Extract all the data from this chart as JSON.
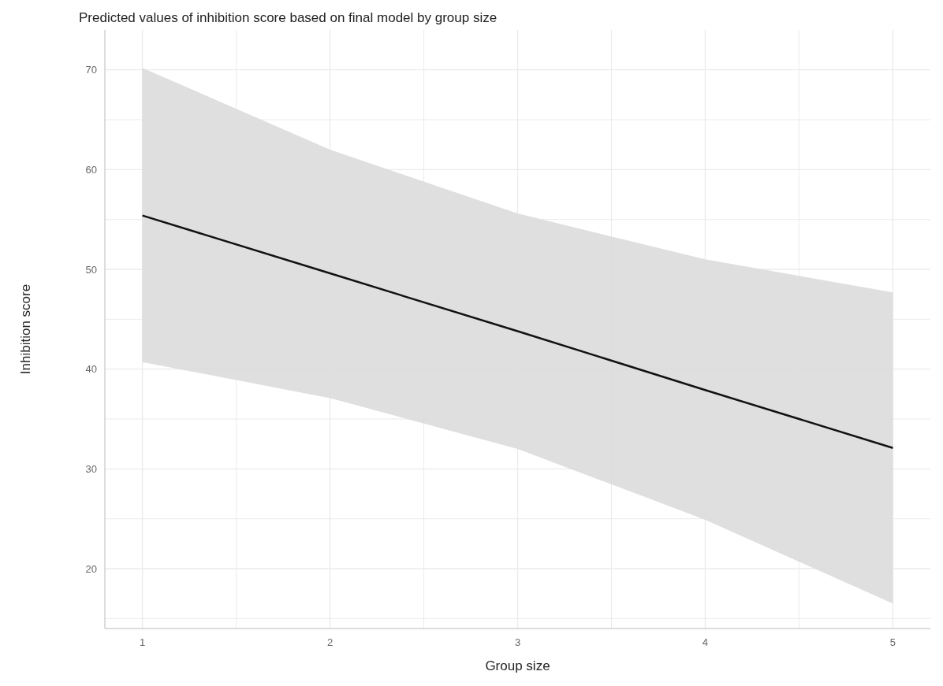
{
  "chart_data": {
    "type": "line",
    "title": "Predicted values of inhibition score based on final model by group size",
    "xlabel": "Group size",
    "ylabel": "Inhibition score",
    "x": [
      1,
      2,
      3,
      4,
      5
    ],
    "series": [
      {
        "color": "#111111",
        "values": [
          55.4,
          49.6,
          43.8,
          37.9,
          32.1
        ],
        "lower": [
          40.7,
          37.1,
          32.0,
          24.9,
          16.5
        ],
        "upper": [
          70.2,
          62.0,
          55.6,
          51.0,
          47.7
        ]
      }
    ],
    "xlim": [
      0.8,
      5.2
    ],
    "ylim": [
      14,
      74
    ],
    "xticks": [
      1,
      {
        "value": 1.5,
        "label": null
      },
      2,
      {
        "value": 2.5,
        "label": null
      },
      3,
      {
        "value": 3.5,
        "label": null
      },
      4,
      {
        "value": 4.5,
        "label": null
      },
      5
    ],
    "yticks": [
      {
        "value": 15,
        "label": null
      },
      20,
      {
        "value": 25,
        "label": null
      },
      30,
      {
        "value": 35,
        "label": null
      },
      40,
      {
        "value": 45,
        "label": null
      },
      50,
      {
        "value": 55,
        "label": null
      },
      60,
      {
        "value": 65,
        "label": null
      },
      70
    ],
    "grid": true,
    "marker": "none",
    "line_style": "solid"
  }
}
